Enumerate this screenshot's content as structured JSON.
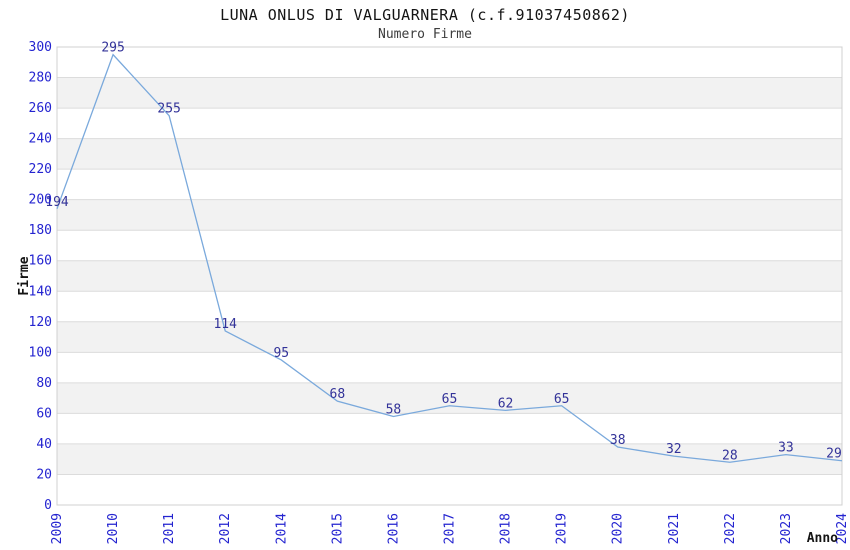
{
  "chart_data": {
    "type": "line",
    "title": "LUNA ONLUS DI VALGUARNERA (c.f.91037450862)",
    "subtitle": "Numero Firme",
    "xlabel": "Anno",
    "ylabel": "Firme",
    "categories": [
      "2009",
      "2010",
      "2011",
      "2012",
      "2014",
      "2015",
      "2016",
      "2017",
      "2018",
      "2019",
      "2020",
      "2021",
      "2022",
      "2023",
      "2024"
    ],
    "values": [
      194,
      295,
      255,
      114,
      95,
      68,
      58,
      65,
      62,
      65,
      38,
      32,
      28,
      33,
      29
    ],
    "ylim": [
      0,
      300
    ],
    "ytick_step": 20,
    "grid": "horizontal-only",
    "banding": "alternating horizontal bands every 20 units",
    "legend": "none",
    "colors": {
      "line": "#7aa9dc",
      "data_label": "#333399",
      "tick_label": "#2424d0",
      "grid": "#dcdcdc",
      "band": "#f2f2f2",
      "border": "#d0d0d0",
      "title": "#141414",
      "subtitle": "#3c3c3c",
      "axis_title": "#141414",
      "background": "#ffffff"
    }
  }
}
